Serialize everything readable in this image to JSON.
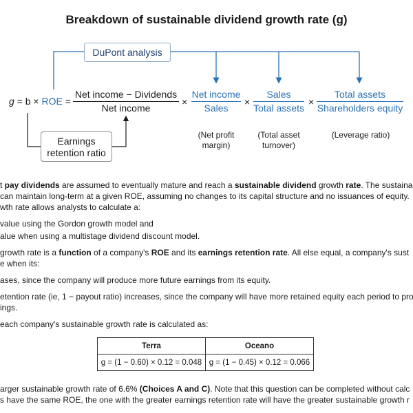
{
  "figure": {
    "title": "Breakdown of sustainable dividend growth rate (g)",
    "dupont_label": "DuPont analysis",
    "retention_label_line1": "Earnings",
    "retention_label_line2": "retention ratio",
    "eq_lhs_g": "g",
    "eq_lhs_rest": " = b × ",
    "eq_roe": "ROE",
    "eq_equals": "=",
    "frac1_num": "Net income − Dividends",
    "frac1_den": "Net income",
    "times": "×",
    "frac2_num": "Net income",
    "frac2_den": "Sales",
    "frac3_num": "Sales",
    "frac3_den": "Total assets",
    "frac4_num": "Total assets",
    "frac4_den": "Shareholders equity",
    "note1_line1": "(Net profit",
    "note1_line2": "margin)",
    "note2_line1": "(Total asset",
    "note2_line2": "turnover)",
    "note3": "(Leverage ratio)"
  },
  "text": {
    "p1_a": "t ",
    "p1_b": "pay dividends",
    "p1_c": " are assumed to eventually mature and reach a ",
    "p1_d": "sustainable dividend",
    "p1_e": " growth ",
    "p1_f": "rate",
    "p1_g": ".  The sustaina",
    "p2": " can maintain long-term at a given ROE, assuming no changes to its capital structure and no issuances of equity.",
    "p3": "wth rate allows analysts to calculate a:",
    "p4": " value using the Gordon growth model and",
    "p5": "alue when using a multistage dividend discount model.",
    "p6_a": " growth rate is a ",
    "p6_b": "function",
    "p6_c": " of a company's ",
    "p6_d": "ROE",
    "p6_e": " and its ",
    "p6_f": "earnings retention rate",
    "p6_g": ".  All else equal, a company's sust",
    "p7": "e when its:",
    "p8": "ases, since the company will produce more future earnings from its equity.",
    "p9": "etention rate (ie, 1 − payout ratio) increases, since the company will have more retained equity each period to pro",
    "p10": "ings.",
    "p11": " each company's sustainable growth rate is calculated as:",
    "p12_a": "arger sustainable growth rate of 6.6% ",
    "p12_b": "(Choices A and C)",
    "p12_c": ".  Note that this question can be completed without calc",
    "p13": "s have the same ROE, the one with the greater earnings retention rate will have the greater sustainable growth r"
  },
  "table": {
    "col1": "Terra",
    "col2": "Oceano",
    "cell1": "g = (1 − 0.60) × 0.12 = 0.048",
    "cell2": "g = (1 − 0.45) × 0.12 = 0.066"
  },
  "colors": {
    "accent": "#2a72b5",
    "text": "#1a1a1a"
  }
}
